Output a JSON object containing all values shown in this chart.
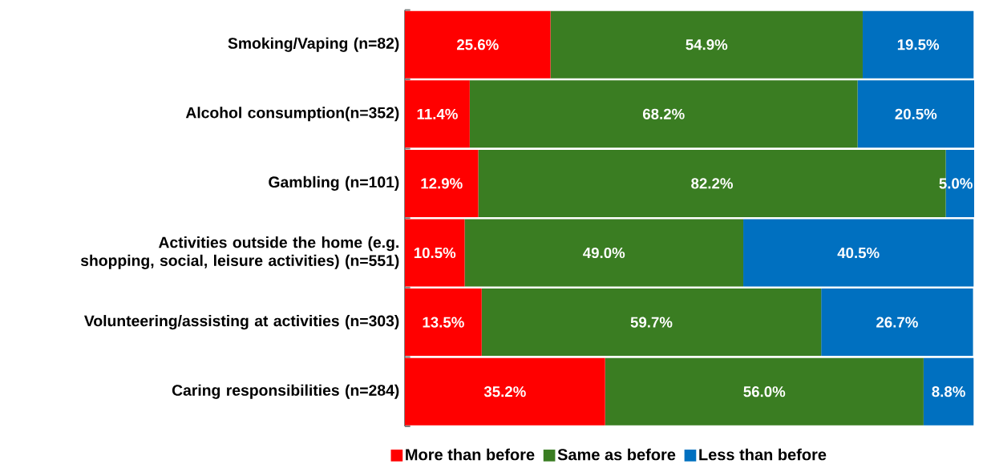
{
  "chart_data": {
    "type": "bar",
    "orientation": "horizontal",
    "stacked": true,
    "legend": "bottom",
    "categories": [
      "Smoking/Vaping (n=82)",
      "Alcohol consumption(n=352)",
      "Gambling (n=101)",
      "Activities outside the home (e.g. shopping, social, leisure activities) (n=551)",
      "Volunteering/assisting at activities (n=303)",
      "Caring responsibilities (n=284)"
    ],
    "series": [
      {
        "name": "More than before",
        "color": "#ff0000",
        "values": [
          25.6,
          11.4,
          12.9,
          10.5,
          13.5,
          35.2
        ],
        "value_labels": [
          "25.6%",
          "11.4%",
          "12.9%",
          "10.5%",
          "13.5%",
          "35.2%"
        ]
      },
      {
        "name": "Same as before",
        "color": "#3a7d22",
        "values": [
          54.9,
          68.2,
          82.2,
          49.0,
          59.7,
          56.0
        ],
        "value_labels": [
          "54.9%",
          "68.2%",
          "82.2%",
          "49.0%",
          "59.7%",
          "56.0%"
        ]
      },
      {
        "name": "Less than before",
        "color": "#0070c0",
        "values": [
          19.5,
          20.5,
          5.0,
          40.5,
          26.7,
          8.8
        ],
        "value_labels": [
          "19.5%",
          "20.5%",
          "5.0%",
          "40.5%",
          "26.7%",
          "8.8%"
        ]
      }
    ]
  }
}
